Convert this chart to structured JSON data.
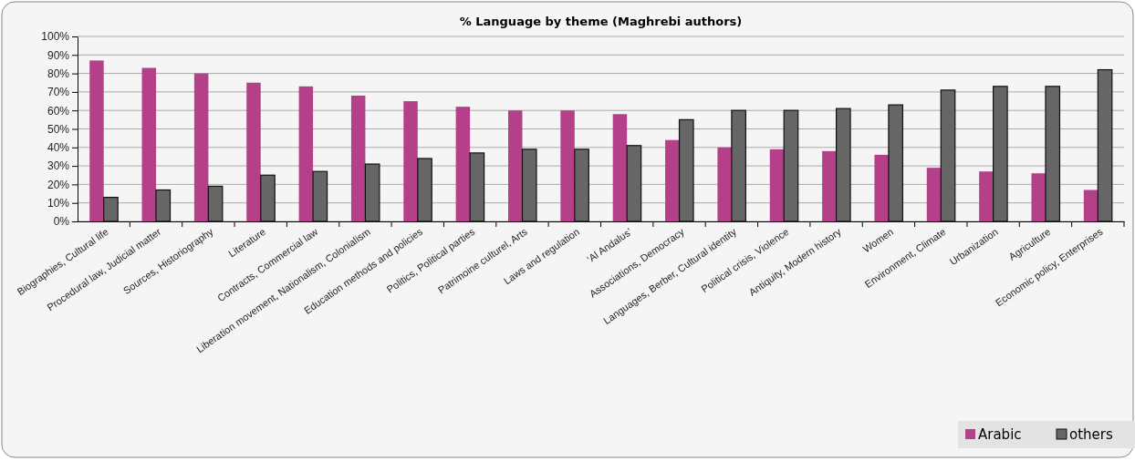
{
  "chart_data": {
    "type": "bar",
    "title": "% Language by theme (Maghrebi authors)",
    "categories": [
      "Biographies, Cultural life",
      "Procedural law, Judicial matter",
      "Sources, Historiography",
      "Literature",
      "Contracts, Commercial law",
      "Liberation movement, Nationalism, Colonialism",
      "Education methods and policies",
      "Politics, Political parties",
      "Patrimoine culturel, Arts",
      "Laws and regulation",
      "‘Al Andalus’",
      "Associations, Democracy",
      "Languages, Berber, Cultural identity",
      "Political crisis, Violence",
      "Antiquity, Modern history",
      "Women",
      "Environment, Climate",
      "Urbanization",
      "Agriculture",
      "Economic policy, Enterprises"
    ],
    "series": [
      {
        "name": "Arabic",
        "color": "#b5408a",
        "values": [
          87,
          83,
          80,
          75,
          73,
          68,
          65,
          62,
          60,
          60,
          58,
          44,
          40,
          39,
          38,
          36,
          29,
          27,
          26,
          17
        ]
      },
      {
        "name": "others",
        "color": "#666666",
        "values": [
          13,
          17,
          19,
          25,
          27,
          31,
          34,
          37,
          39,
          39,
          41,
          55,
          60,
          60,
          61,
          63,
          71,
          73,
          73,
          82
        ]
      }
    ],
    "ylim": [
      0,
      100
    ],
    "yticks": [
      {
        "value": 0,
        "label": "0%"
      },
      {
        "value": 10,
        "label": "10%"
      },
      {
        "value": 20,
        "label": "20%"
      },
      {
        "value": 30,
        "label": "30%"
      },
      {
        "value": 40,
        "label": "40%"
      },
      {
        "value": 50,
        "label": "50%"
      },
      {
        "value": 60,
        "label": "60%"
      },
      {
        "value": 70,
        "label": "70%"
      },
      {
        "value": 80,
        "label": "80%"
      },
      {
        "value": 90,
        "label": "90%"
      },
      {
        "value": 100,
        "label": "100%"
      }
    ],
    "grid": "y",
    "legend": "bottom right"
  }
}
